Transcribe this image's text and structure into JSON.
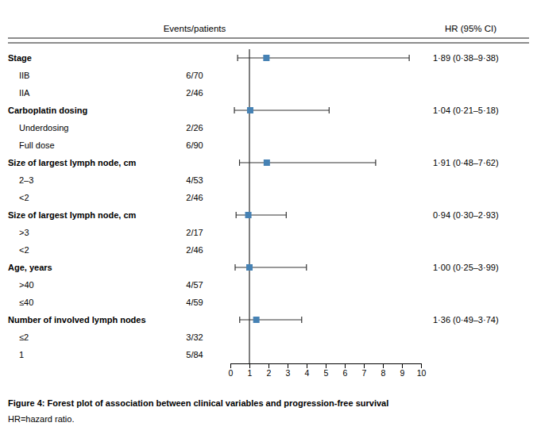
{
  "chart_data": {
    "type": "forest",
    "title": "Figure 4: Forest plot of association between clinical variables and progression-free survival",
    "annotations": [
      "HR=hazard ratio."
    ],
    "column_headers": [
      "Events/patients",
      "HR (95% CI)"
    ],
    "groups": [
      {
        "label": "Stage",
        "value": 1.89,
        "ci_lo": 0.38,
        "ci_hi": 9.38,
        "value_label": "1·89 (0·38–9·38)",
        "subgroups": [
          {
            "label": "IIB",
            "events": "6/70"
          },
          {
            "label": "IIA",
            "events": "2/46"
          }
        ]
      },
      {
        "label": "Carboplatin dosing",
        "value": 1.04,
        "ci_lo": 0.21,
        "ci_hi": 5.18,
        "value_label": "1·04 (0·21–5·18)",
        "subgroups": [
          {
            "label": "Underdosing",
            "events": "2/26"
          },
          {
            "label": "Full dose",
            "events": "6/90"
          }
        ]
      },
      {
        "label": "Size of largest lymph node, cm",
        "value": 1.91,
        "ci_lo": 0.48,
        "ci_hi": 7.62,
        "value_label": "1·91 (0·48–7·62)",
        "subgroups": [
          {
            "label": "2–3",
            "events": "4/53"
          },
          {
            "label": "<2",
            "events": "2/46"
          }
        ]
      },
      {
        "label": "Size of largest lymph node, cm",
        "value": 0.94,
        "ci_lo": 0.3,
        "ci_hi": 2.93,
        "value_label": "0·94 (0·30–2·93)",
        "subgroups": [
          {
            "label": ">3",
            "events": "2/17"
          },
          {
            "label": "<2",
            "events": "2/46"
          }
        ]
      },
      {
        "label": "Age, years",
        "value": 1.0,
        "ci_lo": 0.25,
        "ci_hi": 3.99,
        "value_label": "1·00 (0·25–3·99)",
        "subgroups": [
          {
            "label": ">40",
            "events": "4/57"
          },
          {
            "label": "≤40",
            "events": "4/59"
          }
        ]
      },
      {
        "label": "Number of involved lymph nodes",
        "value": 1.36,
        "ci_lo": 0.49,
        "ci_hi": 3.74,
        "value_label": "1·36 (0·49–3·74)",
        "subgroups": [
          {
            "label": "≤2",
            "events": "3/32"
          },
          {
            "label": "1",
            "events": "5/84"
          }
        ]
      }
    ],
    "reference_line": 1,
    "xlim": [
      0,
      10
    ],
    "xticks": [
      0,
      1,
      2,
      3,
      4,
      5,
      6,
      7,
      8,
      9,
      10
    ]
  }
}
